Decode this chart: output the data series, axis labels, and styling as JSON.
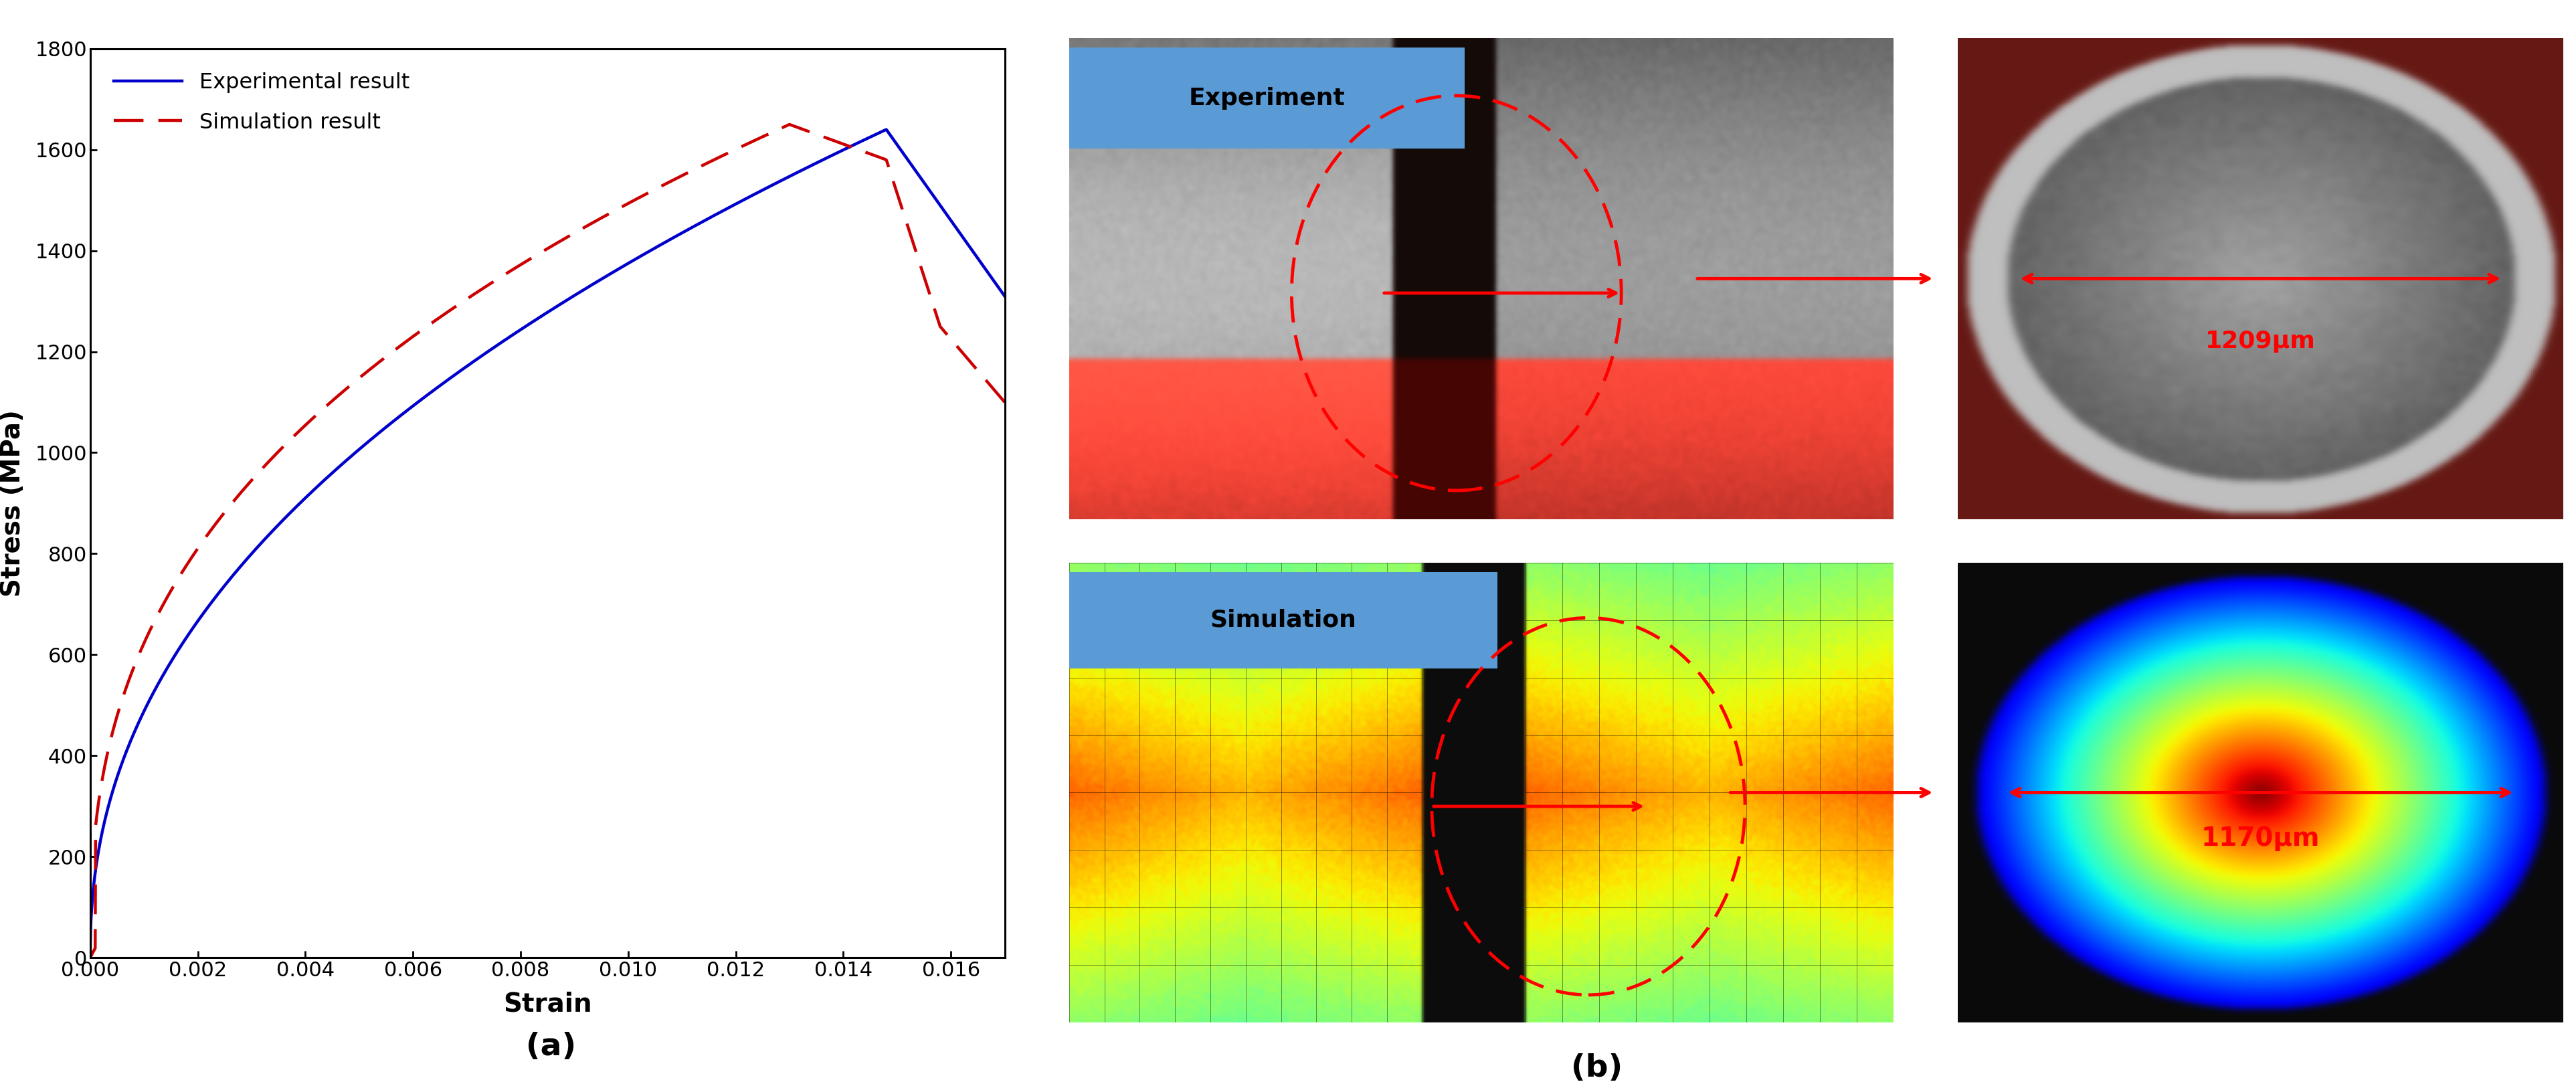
{
  "ylabel": "Stress (MPa)",
  "xlabel": "Strain",
  "legend_exp": "Experimental result",
  "legend_sim": "Simulation result",
  "exp_color": "#0000cc",
  "sim_color": "#cc0000",
  "ylim": [
    0,
    1800
  ],
  "xlim": [
    0.0,
    0.017
  ],
  "yticks": [
    0,
    200,
    400,
    600,
    800,
    1000,
    1200,
    1400,
    1600,
    1800
  ],
  "xticks": [
    0.0,
    0.002,
    0.004,
    0.006,
    0.008,
    0.01,
    0.012,
    0.014,
    0.016
  ],
  "exp_label_text": "1209μm",
  "sim_label_text": "1170μm",
  "exp_img_label": "Experiment",
  "sim_img_label": "Simulation",
  "label_a": "(a)",
  "label_b": "(b)",
  "label_color_box": "#5b9bd5"
}
